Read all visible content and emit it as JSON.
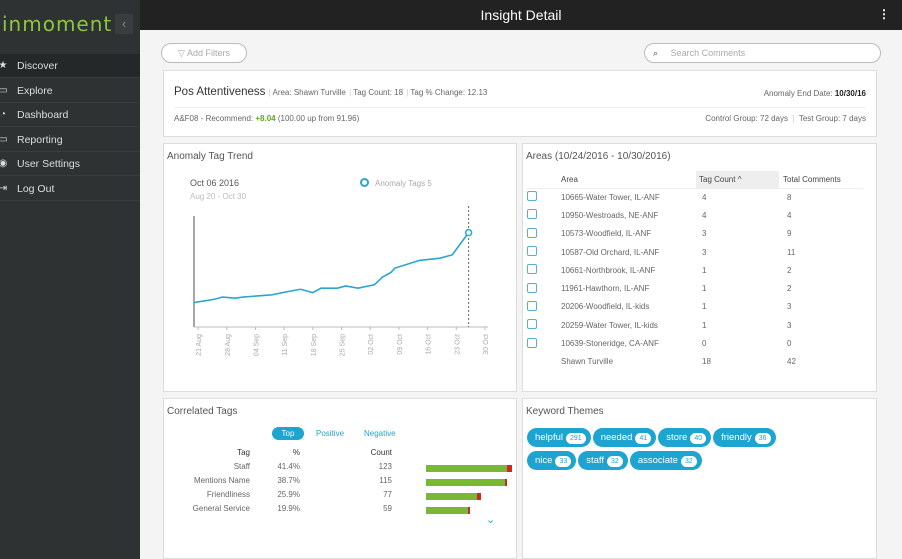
{
  "app": {
    "logo": "inmoment",
    "collapse_icon": "chevron-left-icon"
  },
  "sidebar": {
    "items": [
      {
        "label": "Discover",
        "icon": "star-icon",
        "active": true
      },
      {
        "label": "Explore",
        "icon": "chat-icon"
      },
      {
        "label": "Dashboard",
        "icon": "gauge-icon"
      },
      {
        "label": "Reporting",
        "icon": "report-icon"
      },
      {
        "label": "User Settings",
        "icon": "eye-icon"
      },
      {
        "label": "Log Out",
        "icon": "logout-icon"
      }
    ]
  },
  "topbar": {
    "title": "Insight Detail",
    "menu_icon": "kebab-icon"
  },
  "filters": {
    "add_label": "Add Filters",
    "search_placeholder": "Search Comments"
  },
  "summary": {
    "name": "Pos Attentiveness",
    "area": "Area: Shawn Turville",
    "tag_count": "Tag Count: 18",
    "tag_change": "Tag % Change: 12.13",
    "end_date_label": "Anomaly End Date:",
    "end_date": "10/30/16",
    "metric_label": "A&F08 - Recommend:",
    "metric_delta": "+8.04",
    "metric_detail": "(100.00 up from 91.96)",
    "control_group": "Control Group: 72 days",
    "test_group": "Test Group: 7 days",
    "colors": {
      "delta": "#5aaa2a"
    }
  },
  "trend": {
    "title": "Anomaly Tag Trend",
    "date": "Oct 06 2016",
    "range": "Aug 20 - Oct 30",
    "legend": "Anomaly Tags 5"
  },
  "chart_data": {
    "type": "line",
    "title": "Anomaly Tag Trend",
    "color": "#2aa6cc",
    "grid": false,
    "x_ticks": [
      "21 Aug",
      "28 Aug",
      "04 Sep",
      "11 Sep",
      "18 Sep",
      "25 Sep",
      "02 Oct",
      "09 Oct",
      "16 Oct",
      "23 Oct",
      "30 Oct"
    ],
    "xlim": [
      "2016-08-20",
      "2016-10-30"
    ],
    "ylim": [
      0,
      100
    ],
    "marker_date": "2016-10-26",
    "series": [
      {
        "name": "Anomaly Tags",
        "x": [
          "2016-08-20",
          "2016-08-25",
          "2016-08-27",
          "2016-08-30",
          "2016-09-01",
          "2016-09-08",
          "2016-09-12",
          "2016-09-15",
          "2016-09-18",
          "2016-09-20",
          "2016-09-24",
          "2016-09-26",
          "2016-09-29",
          "2016-10-03",
          "2016-10-05",
          "2016-10-07",
          "2016-10-08",
          "2016-10-14",
          "2016-10-19",
          "2016-10-22",
          "2016-10-26"
        ],
        "values": [
          22,
          25,
          27,
          26,
          27,
          29,
          32,
          34,
          31,
          35,
          35,
          37,
          35,
          38,
          45,
          49,
          53,
          60,
          62,
          65,
          85
        ]
      }
    ]
  },
  "areas": {
    "title": "Areas (10/24/2016 - 10/30/2016)",
    "headers": [
      "Area",
      "Tag Count ^",
      "Total Comments"
    ],
    "rows": [
      [
        "10665-Water Tower, IL-ANF",
        "4",
        "8"
      ],
      [
        "10950-Westroads, NE-ANF",
        "4",
        "4"
      ],
      [
        "10573-Woodfield, IL-ANF",
        "3",
        "9"
      ],
      [
        "10587-Old Orchard, IL-ANF",
        "3",
        "11"
      ],
      [
        "10661-Northbrook, IL-ANF",
        "1",
        "2"
      ],
      [
        "11961-Hawthorn, IL-ANF",
        "1",
        "2"
      ],
      [
        "20206-Woodfield, IL-kids",
        "1",
        "3"
      ],
      [
        "20259-Water Tower, IL-kids",
        "1",
        "3"
      ],
      [
        "10639-Stoneridge, CA-ANF",
        "0",
        "0"
      ]
    ],
    "total": [
      "Shawn Turville",
      "18",
      "42"
    ]
  },
  "correlated": {
    "title": "Correlated Tags",
    "tabs": [
      "Top",
      "Positive",
      "Negative"
    ],
    "active_tab": "Top",
    "headers": [
      "Tag",
      "%",
      "Count"
    ],
    "rows": [
      {
        "tag": "Staff",
        "pct": "41.4%",
        "count": "123",
        "positive": 0.9,
        "negative": 0.05
      },
      {
        "tag": "Mentions Name",
        "pct": "38.7%",
        "count": "115",
        "positive": 0.88,
        "negative": 0.02
      },
      {
        "tag": "Friendliness",
        "pct": "25.9%",
        "count": "77",
        "positive": 0.57,
        "negative": 0.04
      },
      {
        "tag": "General Service",
        "pct": "19.9%",
        "count": "59",
        "positive": 0.47,
        "negative": 0.02
      }
    ],
    "expand_icon": "chevron-down-icon"
  },
  "keywords": {
    "title": "Keyword Themes",
    "items": [
      {
        "word": "helpful",
        "count": "291"
      },
      {
        "word": "needed",
        "count": "41"
      },
      {
        "word": "store",
        "count": "40"
      },
      {
        "word": "friendly",
        "count": "36"
      },
      {
        "word": "nice",
        "count": "33"
      },
      {
        "word": "staff",
        "count": "32"
      },
      {
        "word": "associate",
        "count": "32"
      }
    ]
  }
}
